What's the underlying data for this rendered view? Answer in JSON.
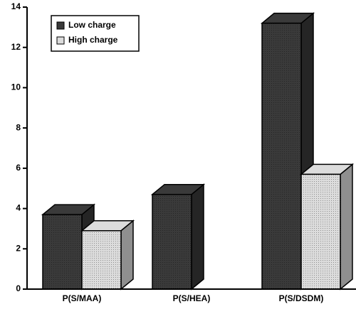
{
  "chart_data": {
    "type": "bar3d",
    "categories": [
      "P(S/MAA)",
      "P(S/HEA)",
      "P(S/DSDM)"
    ],
    "series": [
      {
        "name": "Low charge",
        "color": "#3a3a3a",
        "values": [
          3.7,
          4.7,
          13.2
        ]
      },
      {
        "name": "High charge",
        "color": "#dcdcdc",
        "values": [
          2.9,
          null,
          5.7
        ]
      }
    ],
    "ylim": [
      0,
      14
    ],
    "yticks": [
      0,
      2,
      4,
      6,
      8,
      10,
      12,
      14
    ],
    "legend": "upper left"
  }
}
